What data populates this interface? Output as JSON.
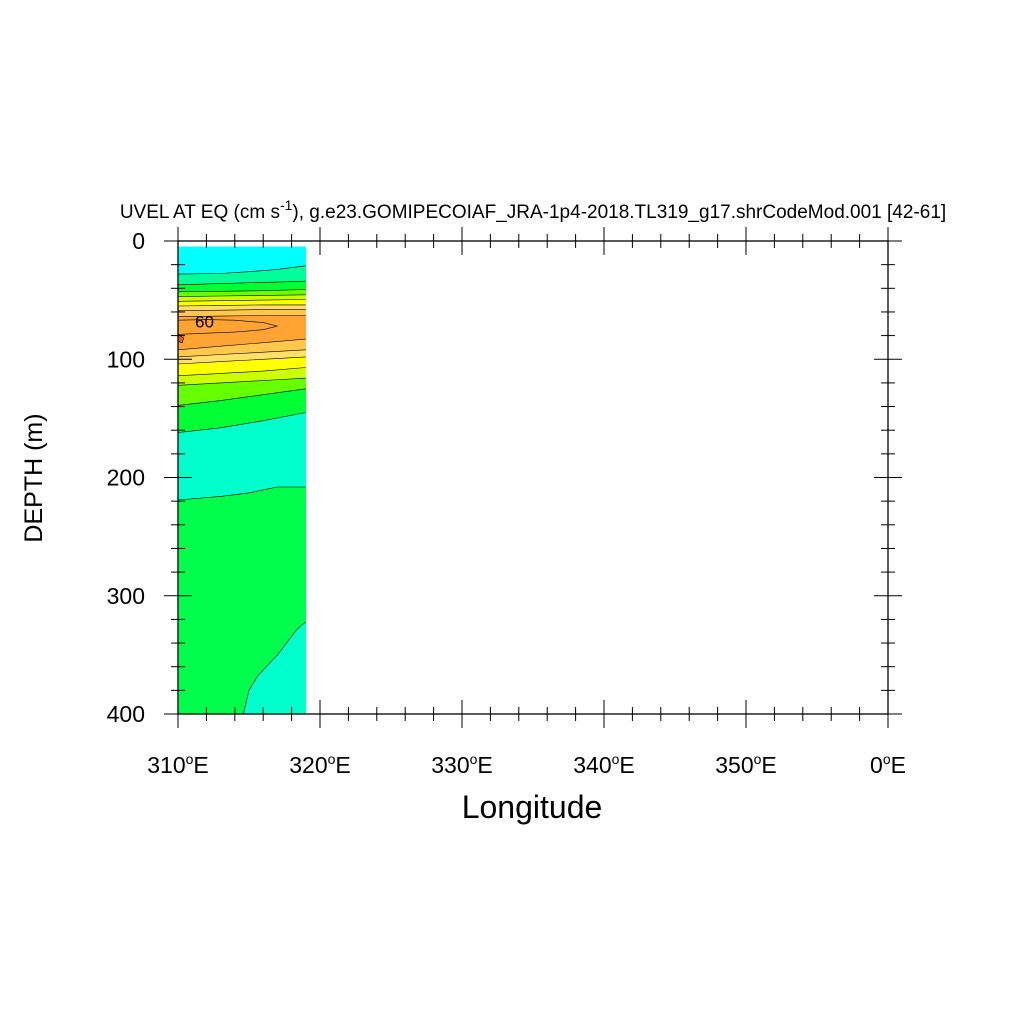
{
  "chart_data": {
    "type": "contour",
    "title": {
      "main": "UVEL AT EQ (cm s",
      "unit_exponent": "-1",
      "rest": "), g.e23.GOMIPECOIAF_JRA-1p4-2018.TL319_g17.shrCodeMod.001 [42-61]"
    },
    "xlabel": "Longitude",
    "ylabel": "DEPTH (m)",
    "xlim": [
      310,
      360
    ],
    "ylim": [
      0,
      400
    ],
    "y_inverted": true,
    "x_ticks": [
      {
        "value": 310,
        "num": "310",
        "deg": "o",
        "hemi": "E"
      },
      {
        "value": 320,
        "num": "320",
        "deg": "o",
        "hemi": "E"
      },
      {
        "value": 330,
        "num": "330",
        "deg": "o",
        "hemi": "E"
      },
      {
        "value": 340,
        "num": "340",
        "deg": "o",
        "hemi": "E"
      },
      {
        "value": 350,
        "num": "350",
        "deg": "o",
        "hemi": "E"
      },
      {
        "value": 360,
        "num": "0",
        "deg": "o",
        "hemi": "E"
      }
    ],
    "y_ticks": [
      {
        "value": 0,
        "label": "0"
      },
      {
        "value": 100,
        "label": "100"
      },
      {
        "value": 200,
        "label": "200"
      },
      {
        "value": 300,
        "label": "300"
      },
      {
        "value": 400,
        "label": "400"
      }
    ],
    "data_extent": {
      "lon": [
        310,
        319
      ],
      "depth": [
        5,
        400
      ]
    },
    "contour_label": {
      "text": "60",
      "lon": 311.2,
      "depth": 68
    },
    "bands": [
      {
        "color": "#00ffff",
        "top": [
          [
            310,
            5
          ],
          [
            319,
            5
          ]
        ],
        "bottom": [
          [
            310,
            28
          ],
          [
            313,
            27.5
          ],
          [
            315,
            26
          ],
          [
            317,
            24
          ],
          [
            319,
            21
          ]
        ]
      },
      {
        "color": "#00ff99",
        "top": [
          [
            310,
            28
          ],
          [
            313,
            27.5
          ],
          [
            315,
            26
          ],
          [
            317,
            24
          ],
          [
            319,
            21
          ]
        ],
        "bottom": [
          [
            310,
            37
          ],
          [
            313,
            36
          ],
          [
            316,
            35
          ],
          [
            319,
            34
          ]
        ]
      },
      {
        "color": "#00ff33",
        "top": [
          [
            310,
            37
          ],
          [
            313,
            36
          ],
          [
            316,
            35
          ],
          [
            319,
            34
          ]
        ],
        "bottom": [
          [
            310,
            43
          ],
          [
            313,
            42.5
          ],
          [
            316,
            42
          ],
          [
            319,
            41
          ]
        ]
      },
      {
        "color": "#66ff00",
        "top": [
          [
            310,
            43
          ],
          [
            313,
            42.5
          ],
          [
            316,
            42
          ],
          [
            319,
            41
          ]
        ],
        "bottom": [
          [
            310,
            47
          ],
          [
            313,
            46.5
          ],
          [
            316,
            46
          ],
          [
            319,
            45.5
          ]
        ]
      },
      {
        "color": "#ccff00",
        "top": [
          [
            310,
            47
          ],
          [
            313,
            46.5
          ],
          [
            316,
            46
          ],
          [
            319,
            45.5
          ]
        ],
        "bottom": [
          [
            310,
            51
          ],
          [
            313,
            50.5
          ],
          [
            316,
            50
          ],
          [
            319,
            49.5
          ]
        ]
      },
      {
        "color": "#ffff00",
        "top": [
          [
            310,
            51
          ],
          [
            313,
            50.5
          ],
          [
            316,
            50
          ],
          [
            319,
            49.5
          ]
        ],
        "bottom": [
          [
            310,
            55
          ],
          [
            313,
            54.5
          ],
          [
            316,
            54
          ],
          [
            319,
            54
          ]
        ]
      },
      {
        "color": "#ffe066",
        "top": [
          [
            310,
            55
          ],
          [
            313,
            54.5
          ],
          [
            316,
            54
          ],
          [
            319,
            54
          ]
        ],
        "bottom": [
          [
            310,
            59
          ],
          [
            313,
            58.5
          ],
          [
            316,
            58
          ],
          [
            319,
            58
          ]
        ]
      },
      {
        "color": "#ffc84d",
        "top": [
          [
            310,
            59
          ],
          [
            313,
            58.5
          ],
          [
            316,
            58
          ],
          [
            319,
            58
          ]
        ],
        "bottom": [
          [
            310,
            64
          ],
          [
            313,
            63.5
          ],
          [
            316,
            63
          ],
          [
            319,
            63
          ]
        ]
      },
      {
        "color": "#ffa332",
        "top": [
          [
            310,
            64
          ],
          [
            313,
            63.5
          ],
          [
            316,
            63
          ],
          [
            319,
            63
          ]
        ],
        "bottom": [
          [
            310,
            92
          ],
          [
            313,
            89
          ],
          [
            316,
            86
          ],
          [
            319,
            83
          ]
        ]
      },
      {
        "color": "#ffc84d",
        "top": [
          [
            310,
            92
          ],
          [
            313,
            89
          ],
          [
            316,
            86
          ],
          [
            319,
            83
          ]
        ],
        "bottom": [
          [
            310,
            98
          ],
          [
            313,
            96
          ],
          [
            316,
            94
          ],
          [
            319,
            92
          ]
        ]
      },
      {
        "color": "#ffe066",
        "top": [
          [
            310,
            98
          ],
          [
            313,
            96
          ],
          [
            316,
            94
          ],
          [
            319,
            92
          ]
        ],
        "bottom": [
          [
            310,
            104
          ],
          [
            313,
            102
          ],
          [
            316,
            100
          ],
          [
            319,
            98
          ]
        ]
      },
      {
        "color": "#ffff00",
        "top": [
          [
            310,
            104
          ],
          [
            313,
            102
          ],
          [
            316,
            100
          ],
          [
            319,
            98
          ]
        ],
        "bottom": [
          [
            310,
            114
          ],
          [
            313,
            112
          ],
          [
            316,
            110
          ],
          [
            319,
            107
          ]
        ]
      },
      {
        "color": "#ccff00",
        "top": [
          [
            310,
            114
          ],
          [
            313,
            112
          ],
          [
            316,
            110
          ],
          [
            319,
            107
          ]
        ],
        "bottom": [
          [
            310,
            122
          ],
          [
            313,
            120
          ],
          [
            316,
            118
          ],
          [
            319,
            116
          ]
        ]
      },
      {
        "color": "#66ff00",
        "top": [
          [
            310,
            122
          ],
          [
            313,
            120
          ],
          [
            316,
            118
          ],
          [
            319,
            116
          ]
        ],
        "bottom": [
          [
            310,
            139
          ],
          [
            313,
            135
          ],
          [
            316,
            130
          ],
          [
            319,
            125
          ]
        ]
      },
      {
        "color": "#00ff33",
        "top": [
          [
            310,
            139
          ],
          [
            313,
            135
          ],
          [
            316,
            130
          ],
          [
            319,
            125
          ]
        ],
        "bottom": [
          [
            310,
            162
          ],
          [
            313,
            158
          ],
          [
            316,
            152
          ],
          [
            319,
            145
          ]
        ]
      },
      {
        "color": "#00ffcc",
        "top": [
          [
            310,
            162
          ],
          [
            313,
            158
          ],
          [
            316,
            152
          ],
          [
            319,
            145
          ]
        ],
        "bottom": [
          [
            310,
            219
          ],
          [
            313,
            216
          ],
          [
            315,
            213
          ],
          [
            317,
            208
          ],
          [
            319,
            208
          ]
        ]
      },
      {
        "color": "#00ff4c",
        "top": [
          [
            310,
            219
          ],
          [
            313,
            216
          ],
          [
            315,
            213
          ],
          [
            317,
            208
          ],
          [
            319,
            208
          ]
        ],
        "bottom": [
          [
            310,
            400
          ],
          [
            319,
            400
          ]
        ]
      }
    ],
    "inner_contours": [
      {
        "fill": "#ffa332",
        "path": [
          [
            310,
            67
          ],
          [
            312,
            66.5
          ],
          [
            314,
            67
          ],
          [
            316,
            69
          ],
          [
            317,
            72
          ],
          [
            316,
            75
          ],
          [
            314,
            77
          ],
          [
            312,
            78
          ],
          [
            310,
            79
          ]
        ]
      },
      {
        "fill": "#e05a2a",
        "path": [
          [
            310,
            79
          ],
          [
            310.4,
            82
          ],
          [
            310.3,
            86
          ],
          [
            310,
            85
          ]
        ]
      }
    ],
    "corner_region": {
      "fill": "#00ffcc",
      "path": [
        [
          314.6,
          400
        ],
        [
          315.0,
          380
        ],
        [
          315.6,
          368
        ],
        [
          317.0,
          350
        ],
        [
          318.4,
          328
        ],
        [
          319,
          322
        ],
        [
          319,
          400
        ]
      ]
    }
  }
}
